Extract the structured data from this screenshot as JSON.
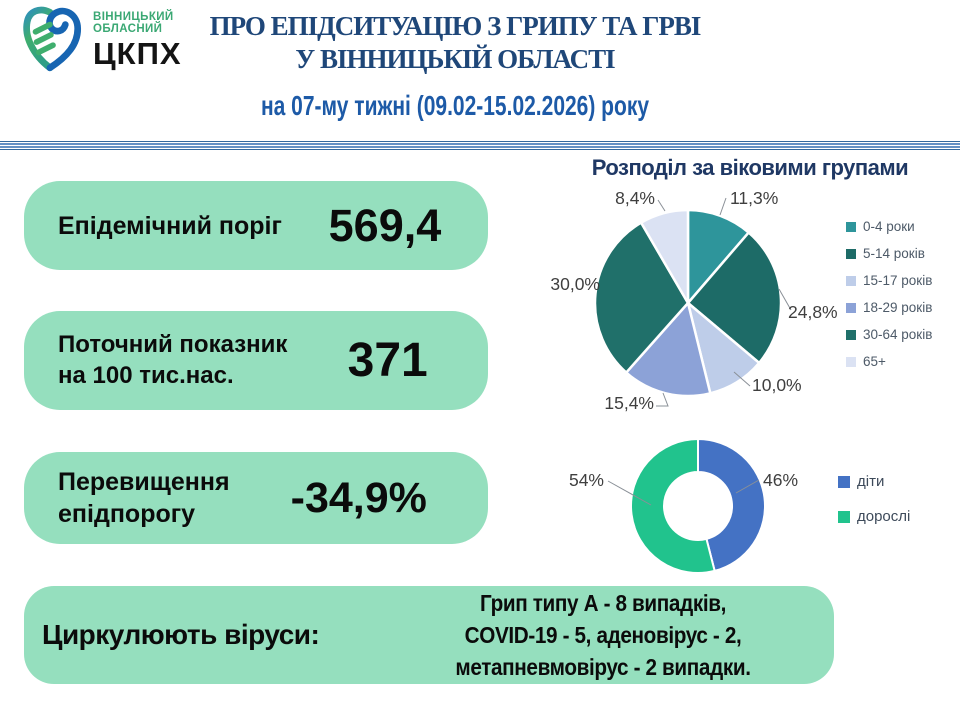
{
  "logo": {
    "org_line1": "ВІННИЦЬКИЙ",
    "org_line2": "ОБЛАСНИЙ",
    "org_abbr": "ЦКПХ"
  },
  "header": {
    "title_line1": "ПРО ЕПІДСИТУАЦІЮ З ГРИПУ ТА ГРВІ",
    "title_line2": "У ВІННИЦЬКІЙ ОБЛАСТІ",
    "subtitle": "на 07-му тижні (09.02-15.02.2026) року"
  },
  "stats": [
    {
      "label1": "Епідемічний поріг",
      "label2": "",
      "value": "569,4"
    },
    {
      "label1": "Поточний показник",
      "label2": "на 100 тис.нас.",
      "value": "371"
    },
    {
      "label1": "Перевищення",
      "label2": "епідпорогу",
      "value": "-34,9%"
    }
  ],
  "viruses": {
    "label": "Циркулюють віруси:",
    "lines": [
      "Грип типу А - 8 випадків,",
      "COVID-19 - 5, аденовірус - 2,",
      "метапневмовірус - 2 випадки."
    ]
  },
  "chart_data": [
    {
      "type": "pie",
      "title": "Розподіл за віковими групами",
      "legend_position": "right",
      "slices": [
        {
          "name": "0-4 роки",
          "value": 11.3,
          "label": "11,3%",
          "color": "#2E959B"
        },
        {
          "name": "5-14 років",
          "value": 24.8,
          "label": "24,8%",
          "color": "#1D6B67"
        },
        {
          "name": "15-17 років",
          "value": 10.0,
          "label": "10,0%",
          "color": "#BECDE9"
        },
        {
          "name": "18-29 років",
          "value": 15.4,
          "label": "15,4%",
          "color": "#8CA2D7"
        },
        {
          "name": "30-64 років",
          "value": 30.0,
          "label": "30,0%",
          "color": "#20706A"
        },
        {
          "name": "65+",
          "value": 8.4,
          "label": "8,4%",
          "color": "#DBE2F3"
        }
      ]
    },
    {
      "type": "donut",
      "title": "",
      "legend_position": "right",
      "slices": [
        {
          "name": "діти",
          "value": 46,
          "label": "46%",
          "color": "#4472C4"
        },
        {
          "name": "дорослі",
          "value": 54,
          "label": "54%",
          "color": "#21C38D"
        }
      ]
    }
  ],
  "colors": {
    "pill_bg": "#95DFBE",
    "title_blue": "#1F4779",
    "subtitle_blue": "#1D5AA7",
    "chart_title_navy": "#1F3864",
    "divider_blue": "#6591C5",
    "divider_dark": "#34699E",
    "logo_green": "#3BA874",
    "logo_blue": "#1765B2"
  }
}
